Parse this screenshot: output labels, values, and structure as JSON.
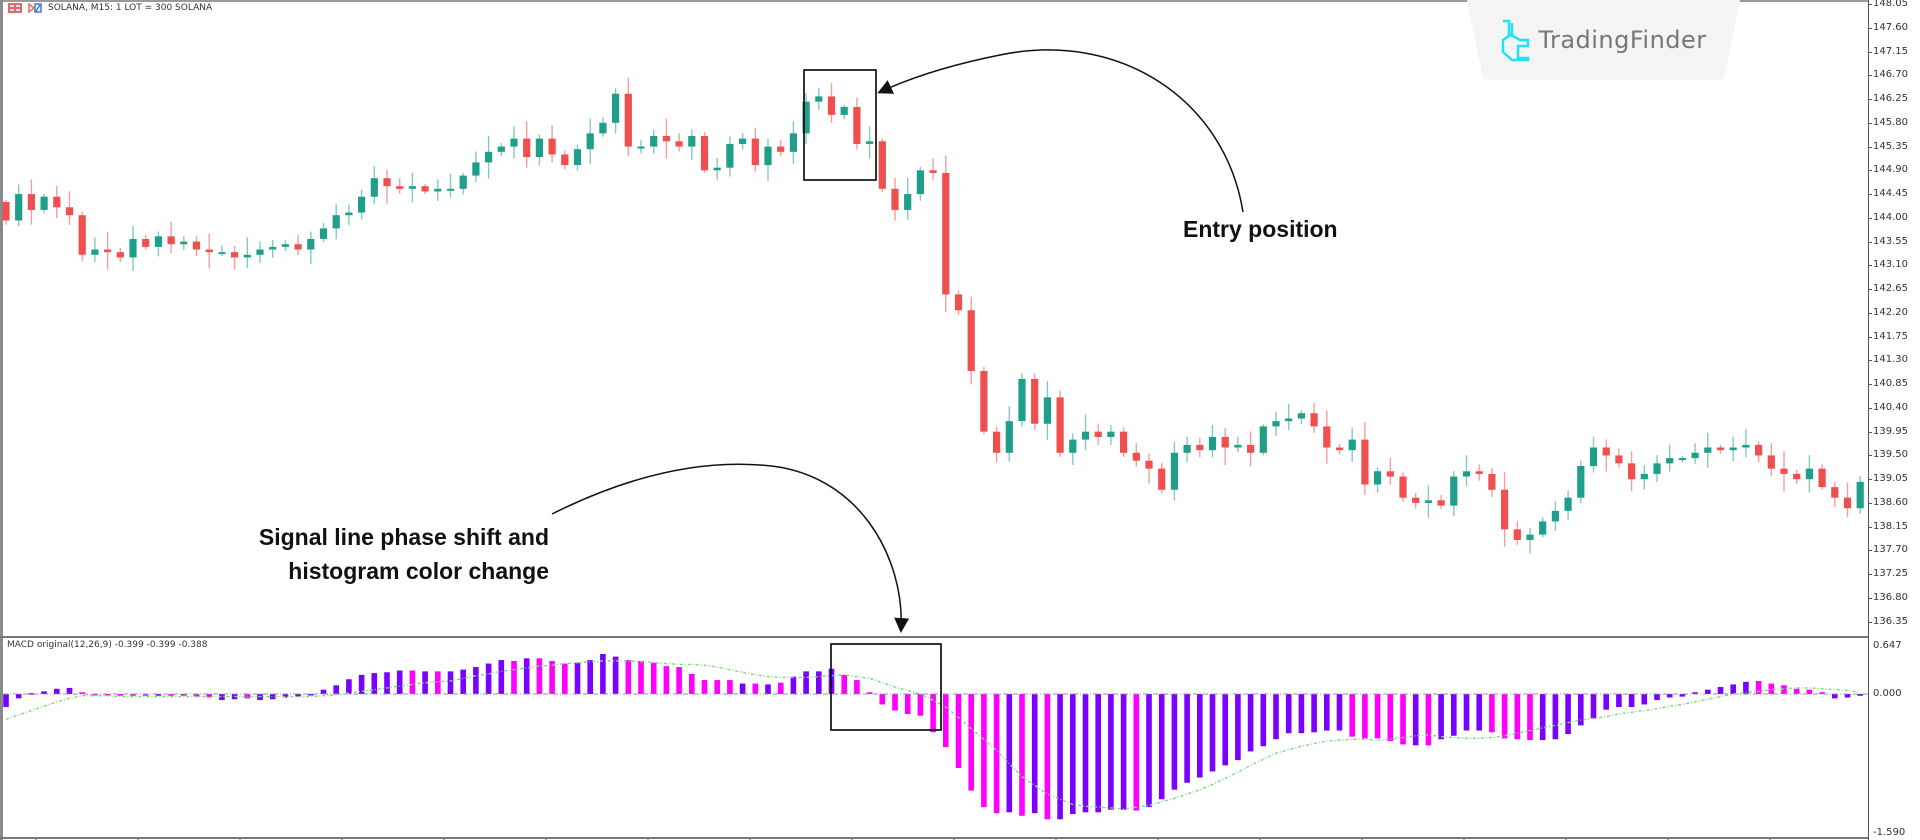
{
  "header": {
    "symbol_info": "SOLANA, M15:  1 LOT = 300 SOLANA",
    "icons": [
      "grid-icon",
      "chart-type-icon"
    ]
  },
  "logo": {
    "text": "TradingFinder",
    "color": "#1ee3f0"
  },
  "annotations": {
    "entry": "Entry position",
    "signal_line1": "Signal line phase shift and",
    "signal_line2": "histogram color change"
  },
  "price_axis": {
    "labels": [
      "148.05",
      "147.60",
      "147.15",
      "146.70",
      "146.25",
      "145.80",
      "145.35",
      "144.90",
      "144.45",
      "144.00",
      "143.55",
      "143.10",
      "142.65",
      "142.20",
      "141.75",
      "141.30",
      "140.85",
      "140.40",
      "139.95",
      "139.50",
      "139.05",
      "138.60",
      "138.15",
      "137.70",
      "137.25",
      "136.80",
      "136.35"
    ]
  },
  "macd": {
    "label": "MACD original(12,26,9) -0.399 -0.399 -0.388",
    "axis_labels": [
      "0.647",
      "0.000",
      "-1.590"
    ]
  },
  "colors": {
    "bull": "#1f9e8a",
    "bear": "#ef4f4f",
    "hist_up": "#7a00ff",
    "hist_down": "#ff00ff",
    "signal": "#7ed87e"
  },
  "chart_data": [
    {
      "type": "candlestick",
      "title": "SOLANA, M15",
      "ylim": [
        136.35,
        148.05
      ],
      "first_open": 144.3,
      "close": [
        143.95,
        144.45,
        144.15,
        144.4,
        144.2,
        144.05,
        143.3,
        143.4,
        143.35,
        143.25,
        143.6,
        143.45,
        143.65,
        143.5,
        143.55,
        143.4,
        143.35,
        143.35,
        143.25,
        143.3,
        143.4,
        143.45,
        143.5,
        143.4,
        143.6,
        143.8,
        144.05,
        144.1,
        144.4,
        144.75,
        144.6,
        144.55,
        144.6,
        144.5,
        144.55,
        144.55,
        144.8,
        145.05,
        145.25,
        145.35,
        145.5,
        145.15,
        145.5,
        145.2,
        145.0,
        145.3,
        145.6,
        145.8,
        146.35,
        145.35,
        145.35,
        145.55,
        145.45,
        145.35,
        145.55,
        144.9,
        144.95,
        145.4,
        145.5,
        145.0,
        145.35,
        145.25,
        145.6,
        146.2,
        146.3,
        145.95,
        146.1,
        145.4,
        145.45,
        144.55,
        144.15,
        144.45,
        144.9,
        144.85,
        142.55,
        142.25,
        141.1,
        139.95,
        139.55,
        140.15,
        140.95,
        140.1,
        140.6,
        139.55,
        139.8,
        139.95,
        139.85,
        139.95,
        139.55,
        139.4,
        139.25,
        138.85,
        139.55,
        139.7,
        139.6,
        139.85,
        139.65,
        139.7,
        139.55,
        140.05,
        140.15,
        140.2,
        140.3,
        140.05,
        139.65,
        139.6,
        139.8,
        138.95,
        139.2,
        139.1,
        138.7,
        138.6,
        138.65,
        138.55,
        139.1,
        139.2,
        139.15,
        138.85,
        138.1,
        137.9,
        138.0,
        138.25,
        138.45,
        138.7,
        139.3,
        139.65,
        139.5,
        139.35,
        139.05,
        139.15,
        139.35,
        139.45,
        139.45,
        139.55,
        139.65,
        139.6,
        139.65,
        139.7,
        139.5,
        139.25,
        139.15,
        139.05,
        139.25,
        138.9,
        138.7,
        138.5,
        139.0
      ]
    },
    {
      "type": "bar",
      "title": "MACD original(12,26,9)",
      "ylim": [
        -1.59,
        0.647
      ],
      "histogram": [
        -0.15,
        -0.05,
        0.01,
        0.03,
        0.06,
        0.07,
        0.02,
        -0.01,
        -0.01,
        -0.02,
        -0.02,
        -0.02,
        -0.02,
        -0.02,
        -0.02,
        -0.03,
        -0.04,
        -0.07,
        -0.06,
        -0.05,
        -0.07,
        -0.06,
        -0.04,
        -0.03,
        -0.01,
        0.05,
        0.1,
        0.17,
        0.22,
        0.24,
        0.25,
        0.27,
        0.27,
        0.26,
        0.26,
        0.26,
        0.28,
        0.31,
        0.35,
        0.39,
        0.38,
        0.41,
        0.41,
        0.38,
        0.35,
        0.36,
        0.39,
        0.46,
        0.43,
        0.39,
        0.38,
        0.36,
        0.32,
        0.31,
        0.23,
        0.16,
        0.16,
        0.16,
        0.12,
        0.12,
        0.11,
        0.13,
        0.2,
        0.26,
        0.26,
        0.29,
        0.22,
        0.16,
        0.02,
        -0.12,
        -0.19,
        -0.23,
        -0.25,
        -0.44,
        -0.61,
        -0.85,
        -1.11,
        -1.3,
        -1.37,
        -1.36,
        -1.4,
        -1.37,
        -1.44,
        -1.44,
        -1.38,
        -1.36,
        -1.36,
        -1.33,
        -1.33,
        -1.34,
        -1.3,
        -1.21,
        -1.1,
        -1.02,
        -0.96,
        -0.89,
        -0.82,
        -0.76,
        -0.66,
        -0.6,
        -0.52,
        -0.45,
        -0.45,
        -0.44,
        -0.42,
        -0.42,
        -0.49,
        -0.51,
        -0.51,
        -0.54,
        -0.58,
        -0.59,
        -0.59,
        -0.52,
        -0.48,
        -0.42,
        -0.42,
        -0.44,
        -0.51,
        -0.52,
        -0.53,
        -0.53,
        -0.52,
        -0.46,
        -0.36,
        -0.28,
        -0.18,
        -0.15,
        -0.15,
        -0.12,
        -0.07,
        -0.04,
        -0.03,
        0.02,
        0.05,
        0.08,
        0.11,
        0.14,
        0.15,
        0.12,
        0.1,
        0.06,
        0.05,
        0.02,
        -0.05,
        -0.04,
        -0.02
      ],
      "histogram_color": "ppppppmmmmmmpmmmmppmppppppppppppmpmpppppmpmmmppppmmmmmmmmmpmpmppppmmmmmmmmmmmmmpmpmppppppmppppppppppppppppmmmmmpmppppmmmmpppppppppppppppppmmmmmmpp",
      "signal": [
        -0.29,
        -0.24,
        -0.19,
        -0.14,
        -0.09,
        -0.05,
        -0.02,
        -0.02,
        -0.02,
        -0.03,
        -0.03,
        -0.03,
        -0.03,
        -0.03,
        -0.03,
        -0.03,
        -0.03,
        -0.03,
        -0.03,
        -0.03,
        -0.03,
        -0.03,
        -0.03,
        -0.03,
        -0.03,
        -0.02,
        -0.01,
        0.01,
        0.03,
        0.05,
        0.07,
        0.09,
        0.11,
        0.13,
        0.14,
        0.15,
        0.18,
        0.21,
        0.23,
        0.26,
        0.28,
        0.3,
        0.32,
        0.33,
        0.35,
        0.36,
        0.37,
        0.38,
        0.38,
        0.38,
        0.37,
        0.36,
        0.35,
        0.34,
        0.34,
        0.33,
        0.31,
        0.28,
        0.25,
        0.22,
        0.2,
        0.19,
        0.19,
        0.19,
        0.2,
        0.21,
        0.22,
        0.2,
        0.18,
        0.13,
        0.08,
        0.04,
        0.0,
        -0.07,
        -0.15,
        -0.27,
        -0.4,
        -0.52,
        -0.65,
        -0.8,
        -0.95,
        -1.05,
        -1.15,
        -1.21,
        -1.27,
        -1.29,
        -1.3,
        -1.31,
        -1.32,
        -1.3,
        -1.28,
        -1.24,
        -1.2,
        -1.15,
        -1.1,
        -1.04,
        -0.97,
        -0.9,
        -0.82,
        -0.75,
        -0.68,
        -0.64,
        -0.6,
        -0.57,
        -0.54,
        -0.53,
        -0.52,
        -0.52,
        -0.53,
        -0.52,
        -0.5,
        -0.48,
        -0.47,
        -0.49,
        -0.5,
        -0.51,
        -0.51,
        -0.5,
        -0.48,
        -0.45,
        -0.42,
        -0.39,
        -0.36,
        -0.33,
        -0.3,
        -0.28,
        -0.26,
        -0.23,
        -0.21,
        -0.19,
        -0.17,
        -0.14,
        -0.12,
        -0.09,
        -0.06,
        -0.03,
        0.0,
        0.02,
        0.03,
        0.05,
        0.06,
        0.07,
        0.07,
        0.06,
        0.05,
        0.04,
        0.02
      ]
    }
  ]
}
